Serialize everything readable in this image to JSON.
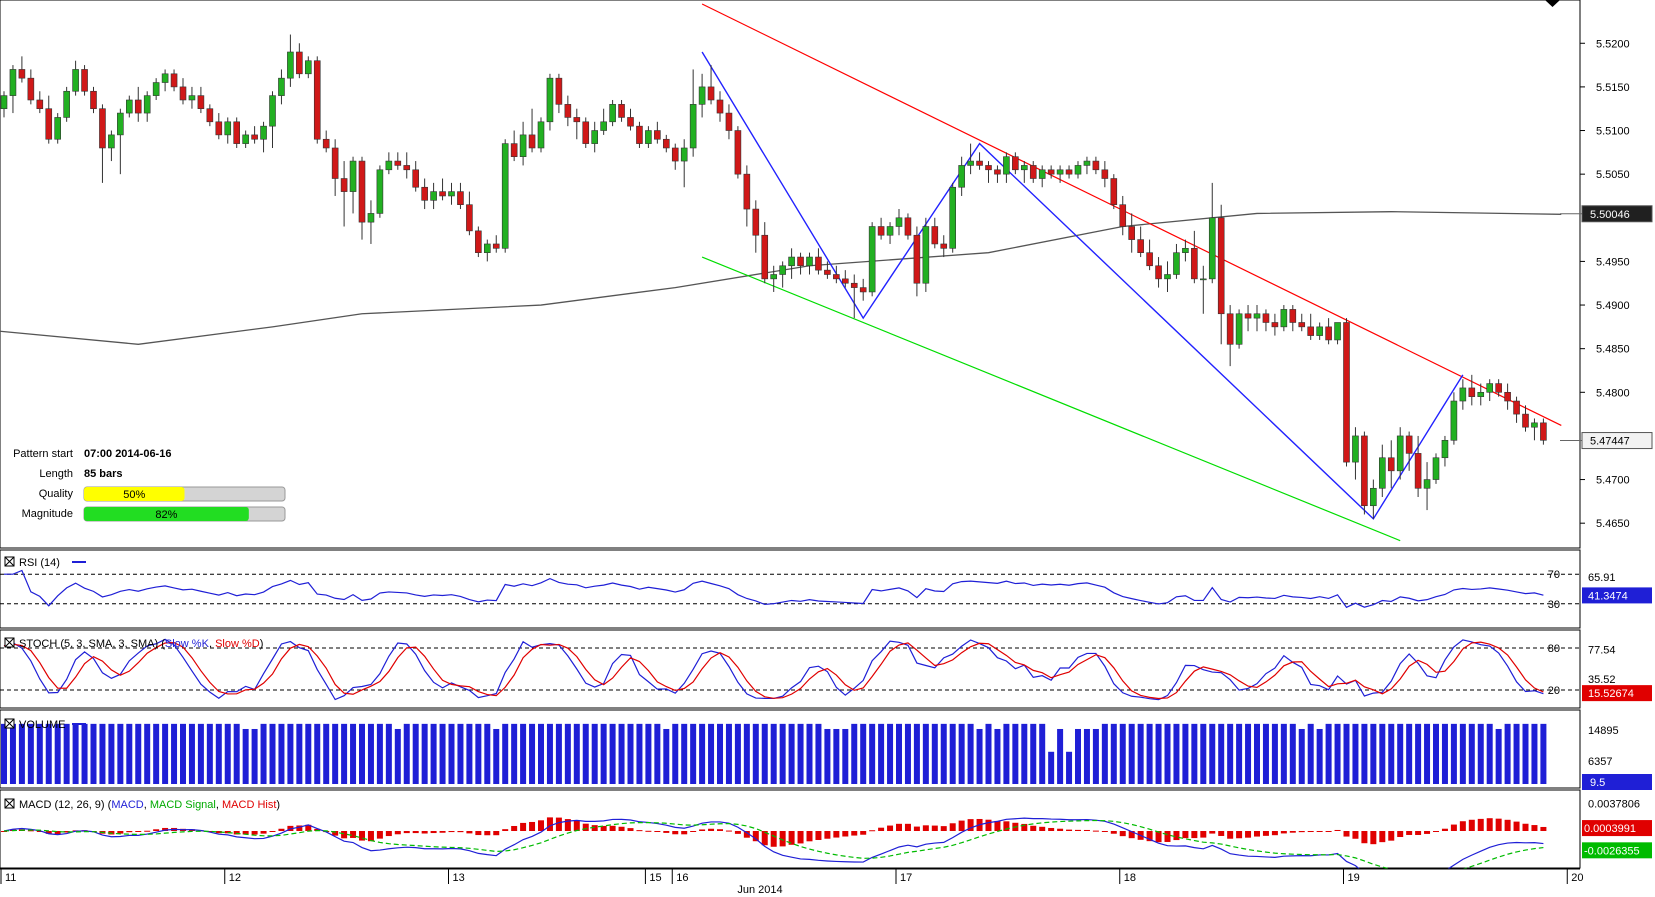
{
  "main_panel": {
    "price_axis_ticks": [
      "5.5200",
      "5.5150",
      "5.5100",
      "5.5050",
      "5.4950",
      "5.4900",
      "5.4850",
      "5.4800",
      "5.4700",
      "5.4650"
    ],
    "price_markers": [
      {
        "label": "5.50046",
        "value": 5.50046,
        "style": "dark"
      },
      {
        "label": "5.47447",
        "value": 5.47447,
        "style": "light"
      }
    ],
    "info": [
      {
        "key": "Pattern start",
        "value": "07:00 2014-06-16"
      },
      {
        "key": "Length",
        "value": "85 bars"
      }
    ],
    "quality": {
      "label": "Quality",
      "text": "50%",
      "fraction": 0.5,
      "color": "#ffff00"
    },
    "magnitude": {
      "label": "Magnitude",
      "text": "82%",
      "fraction": 0.82,
      "color": "#22dd22"
    }
  },
  "chart_data": {
    "type": "candlestick",
    "symbol_note": "",
    "ylim": [
      5.4625,
      5.5245
    ],
    "resistance_line": {
      "color": "#ff0000",
      "from": [
        78,
        5.5245
      ],
      "to": [
        174,
        5.4762
      ]
    },
    "support_line": {
      "color": "#00dd00",
      "from": [
        78,
        5.4955
      ],
      "to": [
        156,
        5.463
      ]
    },
    "zigzag": {
      "color": "#2222ff",
      "points": [
        [
          78,
          5.519
        ],
        [
          96,
          5.4885
        ],
        [
          109,
          5.5085
        ],
        [
          153,
          5.4655
        ],
        [
          163,
          5.482
        ]
      ]
    },
    "sma_line_color": "#555555",
    "sma_points": [
      [
        0,
        5.487
      ],
      [
        15,
        5.4855
      ],
      [
        30,
        5.4875
      ],
      [
        40,
        5.489
      ],
      [
        60,
        5.49
      ],
      [
        75,
        5.492
      ],
      [
        90,
        5.4945
      ],
      [
        110,
        5.496
      ],
      [
        125,
        5.499
      ],
      [
        140,
        5.5005
      ],
      [
        155,
        5.5007
      ],
      [
        174,
        5.5004
      ]
    ],
    "candles": [
      [
        5.5125,
        5.5145,
        5.5115,
        5.514
      ],
      [
        5.514,
        5.5175,
        5.512,
        5.517
      ],
      [
        5.517,
        5.5185,
        5.5155,
        5.516
      ],
      [
        5.516,
        5.517,
        5.513,
        5.5135
      ],
      [
        5.5135,
        5.5145,
        5.512,
        5.5125
      ],
      [
        5.5125,
        5.514,
        5.5085,
        5.509
      ],
      [
        5.509,
        5.512,
        5.5085,
        5.5115
      ],
      [
        5.5115,
        5.515,
        5.511,
        5.5145
      ],
      [
        5.5145,
        5.518,
        5.514,
        5.517
      ],
      [
        5.517,
        5.5175,
        5.514,
        5.5145
      ],
      [
        5.5145,
        5.515,
        5.512,
        5.5125
      ],
      [
        5.5125,
        5.513,
        5.504,
        5.508
      ],
      [
        5.508,
        5.51,
        5.5065,
        5.5095
      ],
      [
        5.5095,
        5.5125,
        5.505,
        5.512
      ],
      [
        5.512,
        5.514,
        5.5115,
        5.5135
      ],
      [
        5.5135,
        5.515,
        5.511,
        5.512
      ],
      [
        5.512,
        5.5145,
        5.511,
        5.514
      ],
      [
        5.514,
        5.516,
        5.5135,
        5.5155
      ],
      [
        5.5155,
        5.517,
        5.5145,
        5.5165
      ],
      [
        5.5165,
        5.517,
        5.5145,
        5.515
      ],
      [
        5.515,
        5.516,
        5.513,
        5.5135
      ],
      [
        5.5135,
        5.515,
        5.5125,
        5.514
      ],
      [
        5.514,
        5.515,
        5.512,
        5.5125
      ],
      [
        5.5125,
        5.513,
        5.5105,
        5.511
      ],
      [
        5.511,
        5.512,
        5.509,
        5.5095
      ],
      [
        5.5095,
        5.5115,
        5.5085,
        5.511
      ],
      [
        5.511,
        5.5115,
        5.508,
        5.5085
      ],
      [
        5.5085,
        5.51,
        5.508,
        5.5095
      ],
      [
        5.5095,
        5.5105,
        5.5085,
        5.509
      ],
      [
        5.509,
        5.511,
        5.5075,
        5.5105
      ],
      [
        5.5105,
        5.5145,
        5.508,
        5.514
      ],
      [
        5.514,
        5.517,
        5.513,
        5.516
      ],
      [
        5.516,
        5.521,
        5.515,
        5.519
      ],
      [
        5.519,
        5.52,
        5.516,
        5.5165
      ],
      [
        5.5165,
        5.5185,
        5.516,
        5.518
      ],
      [
        5.518,
        5.5185,
        5.5085,
        5.509
      ],
      [
        5.509,
        5.51,
        5.5075,
        5.508
      ],
      [
        5.508,
        5.509,
        5.5025,
        5.5045
      ],
      [
        5.5045,
        5.5065,
        5.499,
        5.503
      ],
      [
        5.503,
        5.507,
        5.5005,
        5.5065
      ],
      [
        5.5065,
        5.507,
        5.4975,
        5.4995
      ],
      [
        5.4995,
        5.502,
        5.497,
        5.5005
      ],
      [
        5.5005,
        5.506,
        5.5,
        5.5055
      ],
      [
        5.5055,
        5.5075,
        5.505,
        5.5065
      ],
      [
        5.5065,
        5.5075,
        5.5055,
        5.506
      ],
      [
        5.506,
        5.5075,
        5.5045,
        5.5055
      ],
      [
        5.5055,
        5.5065,
        5.503,
        5.5035
      ],
      [
        5.5035,
        5.5045,
        5.501,
        5.502
      ],
      [
        5.502,
        5.504,
        5.501,
        5.503
      ],
      [
        5.503,
        5.5045,
        5.502,
        5.5025
      ],
      [
        5.5025,
        5.504,
        5.5015,
        5.503
      ],
      [
        5.503,
        5.504,
        5.501,
        5.5015
      ],
      [
        5.5015,
        5.503,
        5.498,
        5.4985
      ],
      [
        5.4985,
        5.499,
        5.4955,
        5.496
      ],
      [
        5.496,
        5.4975,
        5.495,
        5.497
      ],
      [
        5.497,
        5.498,
        5.496,
        5.4965
      ],
      [
        5.4965,
        5.509,
        5.496,
        5.5085
      ],
      [
        5.5085,
        5.51,
        5.5065,
        5.507
      ],
      [
        5.507,
        5.511,
        5.506,
        5.5095
      ],
      [
        5.5095,
        5.5125,
        5.5075,
        5.508
      ],
      [
        5.508,
        5.5115,
        5.5075,
        5.511
      ],
      [
        5.511,
        5.5165,
        5.51,
        5.516
      ],
      [
        5.516,
        5.5165,
        5.512,
        5.513
      ],
      [
        5.513,
        5.514,
        5.5105,
        5.5115
      ],
      [
        5.5115,
        5.5125,
        5.509,
        5.511
      ],
      [
        5.511,
        5.5115,
        5.508,
        5.5085
      ],
      [
        5.5085,
        5.511,
        5.5075,
        5.51
      ],
      [
        5.51,
        5.5125,
        5.5095,
        5.511
      ],
      [
        5.511,
        5.5135,
        5.5105,
        5.513
      ],
      [
        5.513,
        5.5135,
        5.511,
        5.5115
      ],
      [
        5.5115,
        5.5125,
        5.51,
        5.5105
      ],
      [
        5.5105,
        5.511,
        5.508,
        5.5085
      ],
      [
        5.5085,
        5.5105,
        5.508,
        5.51
      ],
      [
        5.51,
        5.511,
        5.5085,
        5.509
      ],
      [
        5.509,
        5.5095,
        5.5075,
        5.508
      ],
      [
        5.508,
        5.5085,
        5.5055,
        5.5065
      ],
      [
        5.5065,
        5.509,
        5.5035,
        5.508
      ],
      [
        5.508,
        5.517,
        5.507,
        5.513
      ],
      [
        5.513,
        5.5165,
        5.5115,
        5.515
      ],
      [
        5.515,
        5.5175,
        5.513,
        5.5135
      ],
      [
        5.5135,
        5.5145,
        5.511,
        5.512
      ],
      [
        5.512,
        5.513,
        5.509,
        5.51
      ],
      [
        5.51,
        5.5105,
        5.5045,
        5.505
      ],
      [
        5.505,
        5.506,
        5.499,
        5.501
      ],
      [
        5.501,
        5.502,
        5.496,
        5.498
      ],
      [
        5.498,
        5.4995,
        5.4925,
        5.493
      ],
      [
        5.493,
        5.4945,
        5.4915,
        5.4935
      ],
      [
        5.4935,
        5.495,
        5.492,
        5.4945
      ],
      [
        5.4945,
        5.4965,
        5.493,
        5.4955
      ],
      [
        5.4955,
        5.496,
        5.4935,
        5.4945
      ],
      [
        5.4945,
        5.496,
        5.4935,
        5.4955
      ],
      [
        5.4955,
        5.4965,
        5.4935,
        5.494
      ],
      [
        5.494,
        5.495,
        5.493,
        5.4935
      ],
      [
        5.4935,
        5.4945,
        5.4925,
        5.493
      ],
      [
        5.493,
        5.494,
        5.492,
        5.4925
      ],
      [
        5.4925,
        5.4935,
        5.4885,
        5.492
      ],
      [
        5.492,
        5.493,
        5.4905,
        5.4915
      ],
      [
        5.4915,
        5.4995,
        5.491,
        5.499
      ],
      [
        5.499,
        5.5,
        5.4975,
        5.498
      ],
      [
        5.498,
        5.4995,
        5.497,
        5.499
      ],
      [
        5.499,
        5.501,
        5.498,
        5.5
      ],
      [
        5.5,
        5.5005,
        5.4975,
        5.498
      ],
      [
        5.498,
        5.499,
        5.491,
        5.4925
      ],
      [
        5.4925,
        5.5,
        5.4915,
        5.499
      ],
      [
        5.499,
        5.5,
        5.4965,
        5.497
      ],
      [
        5.497,
        5.498,
        5.4955,
        5.4965
      ],
      [
        5.4965,
        5.504,
        5.496,
        5.5035
      ],
      [
        5.5035,
        5.507,
        5.5025,
        5.506
      ],
      [
        5.506,
        5.5085,
        5.505,
        5.5065
      ],
      [
        5.5065,
        5.5075,
        5.5055,
        5.506
      ],
      [
        5.506,
        5.5065,
        5.504,
        5.5055
      ],
      [
        5.5055,
        5.506,
        5.504,
        5.505
      ],
      [
        5.505,
        5.5075,
        5.504,
        5.507
      ],
      [
        5.507,
        5.5075,
        5.505,
        5.5055
      ],
      [
        5.5055,
        5.5065,
        5.504,
        5.506
      ],
      [
        5.506,
        5.5065,
        5.504,
        5.5045
      ],
      [
        5.5045,
        5.506,
        5.5035,
        5.5055
      ],
      [
        5.5055,
        5.506,
        5.5045,
        5.505
      ],
      [
        5.505,
        5.506,
        5.504,
        5.5055
      ],
      [
        5.5055,
        5.506,
        5.5045,
        5.505
      ],
      [
        5.505,
        5.5065,
        5.5045,
        5.506
      ],
      [
        5.506,
        5.507,
        5.505,
        5.5065
      ],
      [
        5.5065,
        5.507,
        5.505,
        5.5055
      ],
      [
        5.5055,
        5.5065,
        5.5035,
        5.5045
      ],
      [
        5.5045,
        5.505,
        5.501,
        5.5015
      ],
      [
        5.5015,
        5.5025,
        5.498,
        5.499
      ],
      [
        5.499,
        5.5005,
        5.496,
        5.4975
      ],
      [
        5.4975,
        5.499,
        5.4955,
        5.496
      ],
      [
        5.496,
        5.4975,
        5.494,
        5.4945
      ],
      [
        5.4945,
        5.4955,
        5.492,
        5.493
      ],
      [
        5.493,
        5.495,
        5.4915,
        5.4935
      ],
      [
        5.4935,
        5.497,
        5.493,
        5.496
      ],
      [
        5.496,
        5.4975,
        5.495,
        5.4965
      ],
      [
        5.4965,
        5.4985,
        5.4925,
        5.493
      ],
      [
        5.493,
        5.4945,
        5.489,
        5.493
      ],
      [
        5.493,
        5.504,
        5.4925,
        5.5
      ],
      [
        5.5,
        5.5015,
        5.4855,
        5.489
      ],
      [
        5.489,
        5.49,
        5.483,
        5.4855
      ],
      [
        5.4855,
        5.4895,
        5.485,
        5.489
      ],
      [
        5.489,
        5.49,
        5.487,
        5.4885
      ],
      [
        5.4885,
        5.49,
        5.487,
        5.489
      ],
      [
        5.489,
        5.4895,
        5.487,
        5.488
      ],
      [
        5.488,
        5.489,
        5.4865,
        5.4875
      ],
      [
        5.4875,
        5.49,
        5.487,
        5.4895
      ],
      [
        5.4895,
        5.49,
        5.487,
        5.488
      ],
      [
        5.488,
        5.489,
        5.487,
        5.4875
      ],
      [
        5.4875,
        5.489,
        5.486,
        5.4865
      ],
      [
        5.4865,
        5.488,
        5.486,
        5.4875
      ],
      [
        5.4875,
        5.4885,
        5.4855,
        5.486
      ],
      [
        5.486,
        5.488,
        5.4855,
        5.488
      ],
      [
        5.488,
        5.4885,
        5.4715,
        5.472
      ],
      [
        5.472,
        5.476,
        5.47,
        5.475
      ],
      [
        5.475,
        5.4755,
        5.466,
        5.467
      ],
      [
        5.467,
        5.47,
        5.4655,
        5.469
      ],
      [
        5.469,
        5.474,
        5.468,
        5.4725
      ],
      [
        5.4725,
        5.4745,
        5.469,
        5.471
      ],
      [
        5.471,
        5.476,
        5.47,
        5.475
      ],
      [
        5.475,
        5.4755,
        5.471,
        5.473
      ],
      [
        5.473,
        5.475,
        5.468,
        5.469
      ],
      [
        5.469,
        5.472,
        5.4665,
        5.47
      ],
      [
        5.47,
        5.473,
        5.4695,
        5.4725
      ],
      [
        5.4725,
        5.475,
        5.4715,
        5.4745
      ],
      [
        5.4745,
        5.48,
        5.474,
        5.479
      ],
      [
        5.479,
        5.4815,
        5.478,
        5.4805
      ],
      [
        5.4805,
        5.482,
        5.4785,
        5.4795
      ],
      [
        5.4795,
        5.481,
        5.4785,
        5.48
      ],
      [
        5.48,
        5.4815,
        5.479,
        5.481
      ],
      [
        5.481,
        5.4815,
        5.4795,
        5.48
      ],
      [
        5.48,
        5.481,
        5.478,
        5.479
      ],
      [
        5.479,
        5.4795,
        5.4765,
        5.4775
      ],
      [
        5.4775,
        5.4785,
        5.4755,
        5.476
      ],
      [
        5.476,
        5.477,
        5.4745,
        5.4765
      ],
      [
        5.4765,
        5.477,
        5.474,
        5.4745
      ]
    ]
  },
  "rsi_panel": {
    "title": "RSI (14)",
    "levels": [
      "70",
      "30"
    ],
    "readouts": [
      {
        "label": "65.91"
      },
      {
        "label": "41.3474",
        "style": "blue"
      }
    ]
  },
  "stoch_panel": {
    "title_prefix": "STOCH (5, 3, SMA, 3, SMA)",
    "k_label": "Slow %K",
    "d_label": "Slow %D",
    "levels": [
      "80",
      "20"
    ],
    "readouts": [
      {
        "label": "77.54"
      },
      {
        "label": "35.52"
      },
      {
        "label": "15.52674",
        "style": "red"
      }
    ]
  },
  "volume_panel": {
    "title": "VOLUME",
    "ticks": [
      "14895",
      "6357"
    ],
    "readouts": [
      {
        "label": "9.5",
        "style": "blue"
      }
    ]
  },
  "macd_panel": {
    "title_prefix": "MACD (12, 26, 9)",
    "macd_label": "MACD",
    "signal_label": "MACD Signal",
    "hist_label": "MACD Hist",
    "ticks": [
      "0.0037806"
    ],
    "readouts": [
      {
        "label": "0.0003991",
        "style": "red"
      },
      {
        "label": "-0.0026355",
        "style": "green"
      }
    ]
  },
  "time_axis": {
    "labels": [
      {
        "text": "11",
        "bar": 0
      },
      {
        "text": "12",
        "bar": 25
      },
      {
        "text": "13",
        "bar": 50
      },
      {
        "text": "15",
        "bar": 72
      },
      {
        "text": "16",
        "bar": 75
      },
      {
        "text": "17",
        "bar": 100
      },
      {
        "text": "18",
        "bar": 125
      },
      {
        "text": "19",
        "bar": 150
      },
      {
        "text": "20",
        "bar": 175
      }
    ],
    "month_label": "Jun 2014"
  }
}
